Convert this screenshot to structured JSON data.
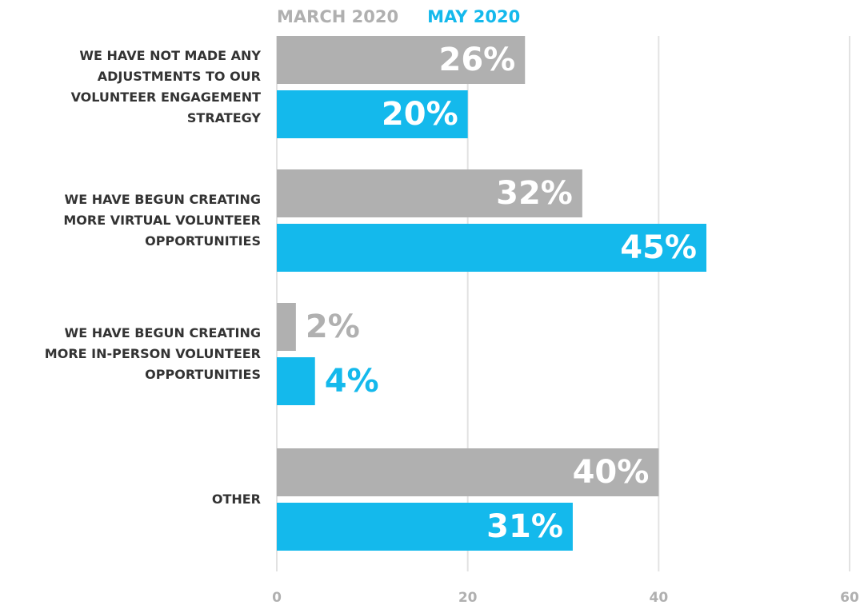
{
  "chart_data": {
    "type": "hbar",
    "categories": [
      "WE HAVE NOT MADE ANY ADJUSTMENTS TO OUR VOLUNTEER ENGAGEMENT STRATEGY",
      "WE HAVE BEGUN CREATING MORE VIRTUAL VOLUNTEER OPPORTUNITIES",
      "WE HAVE BEGUN CREATING MORE IN-PERSON VOLUNTEER OPPORTUNITIES",
      "OTHER"
    ],
    "series": [
      {
        "name": "MARCH 2020",
        "color": "#b0b0b0",
        "values": [
          26,
          32,
          2,
          40
        ],
        "value_labels": [
          "26%",
          "32%",
          "2%",
          "40%"
        ]
      },
      {
        "name": "MAY 2020",
        "color": "#14b9ec",
        "values": [
          20,
          45,
          4,
          31
        ],
        "value_labels": [
          "20%",
          "45%",
          "4%",
          "31%"
        ]
      }
    ],
    "xlim": [
      0,
      60
    ],
    "xticks": [
      0,
      20,
      40,
      60
    ],
    "grid": true,
    "legend": "top"
  }
}
